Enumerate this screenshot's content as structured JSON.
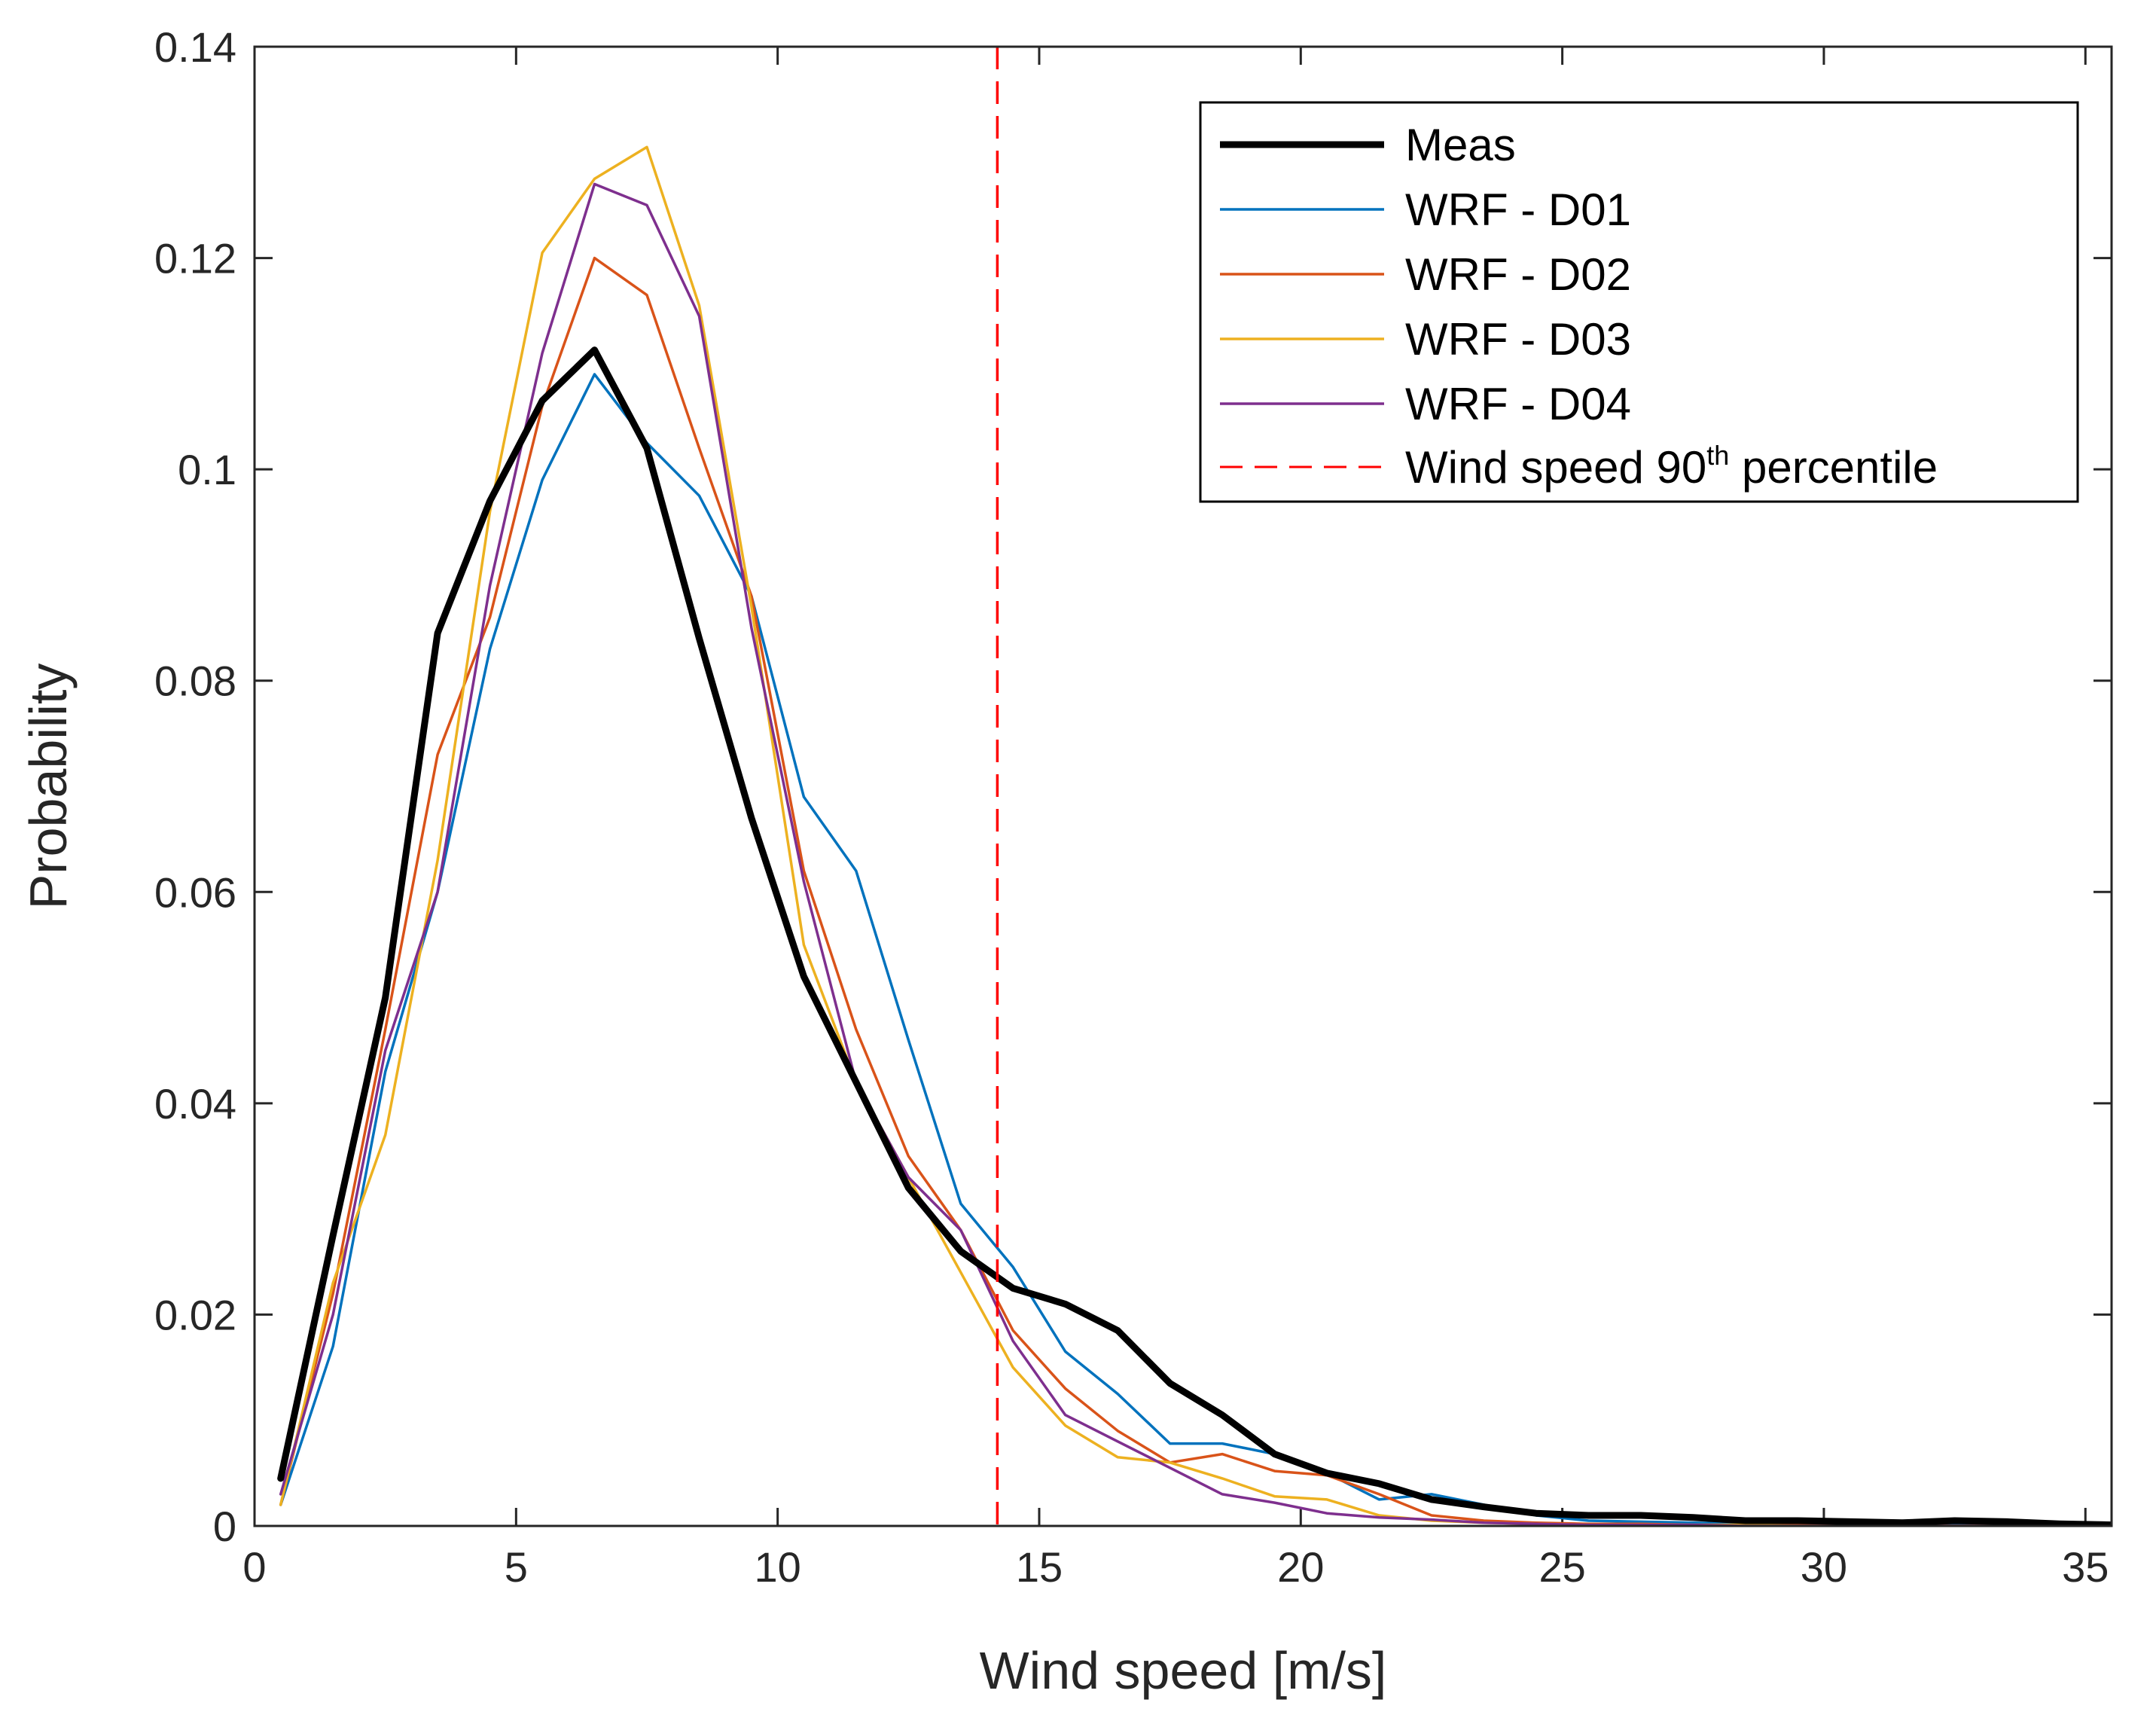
{
  "chart_data": {
    "type": "line",
    "title": "",
    "xlabel": "Wind speed [m/s]",
    "ylabel": "Probability",
    "xlim": [
      0,
      35.5
    ],
    "ylim": [
      0,
      0.14
    ],
    "xticks": [
      0,
      5,
      10,
      15,
      20,
      25,
      30,
      35
    ],
    "xtick_labels": [
      "0",
      "5",
      "10",
      "15",
      "20",
      "25",
      "30",
      "35"
    ],
    "yticks": [
      0,
      0.02,
      0.04,
      0.06,
      0.08,
      0.1,
      0.12,
      0.14
    ],
    "ytick_labels": [
      "0",
      "0.02",
      "0.04",
      "0.06",
      "0.08",
      "0.1",
      "0.12",
      "0.14"
    ],
    "grid": false,
    "legend_position": "top-right",
    "x": [
      0.5,
      1.5,
      2.5,
      3.5,
      4.5,
      5.5,
      6.5,
      7.5,
      8.5,
      9.5,
      10.5,
      11.5,
      12.5,
      13.5,
      14.5,
      15.5,
      16.5,
      17.5,
      18.5,
      19.5,
      20.5,
      21.5,
      22.5,
      23.5,
      24.5,
      25.5,
      26.5,
      27.5,
      28.5,
      29.5,
      30.5,
      31.5,
      32.5,
      33.5,
      34.5,
      35.5
    ],
    "series": [
      {
        "name": "Meas",
        "color": "#000000",
        "values": [
          0.0045,
          0.0275,
          0.05,
          0.0845,
          0.097,
          0.1065,
          0.1113,
          0.102,
          0.084,
          0.067,
          0.052,
          0.042,
          0.032,
          0.026,
          0.0225,
          0.021,
          0.0185,
          0.0135,
          0.0105,
          0.0068,
          0.005,
          0.004,
          0.0025,
          0.0018,
          0.0012,
          0.001,
          0.001,
          0.0008,
          0.0005,
          0.0005,
          0.0004,
          0.0003,
          0.0005,
          0.0004,
          0.0002,
          0.0001
        ]
      },
      {
        "name": "WRF - D01",
        "color": "#0072BD",
        "values": [
          0.002,
          0.017,
          0.043,
          0.06,
          0.083,
          0.099,
          0.109,
          0.1025,
          0.0975,
          0.088,
          0.069,
          0.062,
          0.046,
          0.0305,
          0.0245,
          0.0165,
          0.0125,
          0.0078,
          0.0078,
          0.0068,
          0.005,
          0.0025,
          0.003,
          0.002,
          0.001,
          0.0005,
          0.0004,
          0.0003,
          0.0002,
          0.0002,
          0.0001,
          0.0001,
          0.0001,
          0.0001,
          0.0001,
          0.0
        ]
      },
      {
        "name": "WRF - D02",
        "color": "#D95319",
        "values": [
          0.002,
          0.022,
          0.047,
          0.073,
          0.086,
          0.106,
          0.12,
          0.1165,
          0.102,
          0.088,
          0.062,
          0.047,
          0.035,
          0.028,
          0.0185,
          0.013,
          0.009,
          0.006,
          0.0068,
          0.0052,
          0.0048,
          0.003,
          0.001,
          0.0005,
          0.0003,
          0.0002,
          0.0002,
          0.0001,
          0.0001,
          0.0001,
          0.0001,
          0.0,
          0.0,
          0.0,
          0.0,
          0.0
        ]
      },
      {
        "name": "WRF - D03",
        "color": "#EDB120",
        "values": [
          0.002,
          0.023,
          0.037,
          0.063,
          0.096,
          0.1205,
          0.1275,
          0.1305,
          0.1155,
          0.087,
          0.055,
          0.042,
          0.033,
          0.024,
          0.015,
          0.0095,
          0.0065,
          0.006,
          0.0045,
          0.0028,
          0.0025,
          0.001,
          0.0005,
          0.0003,
          0.0002,
          0.0001,
          0.0001,
          0.0001,
          0.0001,
          0.0,
          0.0,
          0.0,
          0.0,
          0.0,
          0.0,
          0.0
        ]
      },
      {
        "name": "WRF - D04",
        "color": "#7E2F8E",
        "values": [
          0.003,
          0.02,
          0.045,
          0.06,
          0.089,
          0.111,
          0.127,
          0.125,
          0.1145,
          0.085,
          0.061,
          0.042,
          0.033,
          0.028,
          0.0175,
          0.0105,
          0.008,
          0.0055,
          0.003,
          0.0022,
          0.0012,
          0.0008,
          0.0006,
          0.0003,
          0.0002,
          0.0001,
          0.0001,
          0.0001,
          0.0,
          0.0,
          0.0,
          0.0,
          0.0,
          0.0,
          0.0,
          0.0
        ]
      }
    ],
    "vertical_line": {
      "name": "Wind speed 90th percentile",
      "x": 14.2,
      "color": "#FF0000",
      "style": "dashed"
    },
    "legend": {
      "entries": [
        {
          "label": "Meas",
          "color": "#000000",
          "style": "solid-thick"
        },
        {
          "label": "WRF - D01",
          "color": "#0072BD",
          "style": "solid"
        },
        {
          "label": "WRF - D02",
          "color": "#D95319",
          "style": "solid"
        },
        {
          "label": "WRF - D03",
          "color": "#EDB120",
          "style": "solid"
        },
        {
          "label": "WRF - D04",
          "color": "#7E2F8E",
          "style": "solid"
        }
      ],
      "percentile_entry": {
        "label_prefix": "Wind speed 90",
        "label_sup": "th",
        "label_suffix": " percentile",
        "color": "#FF0000",
        "style": "dashed"
      }
    }
  }
}
